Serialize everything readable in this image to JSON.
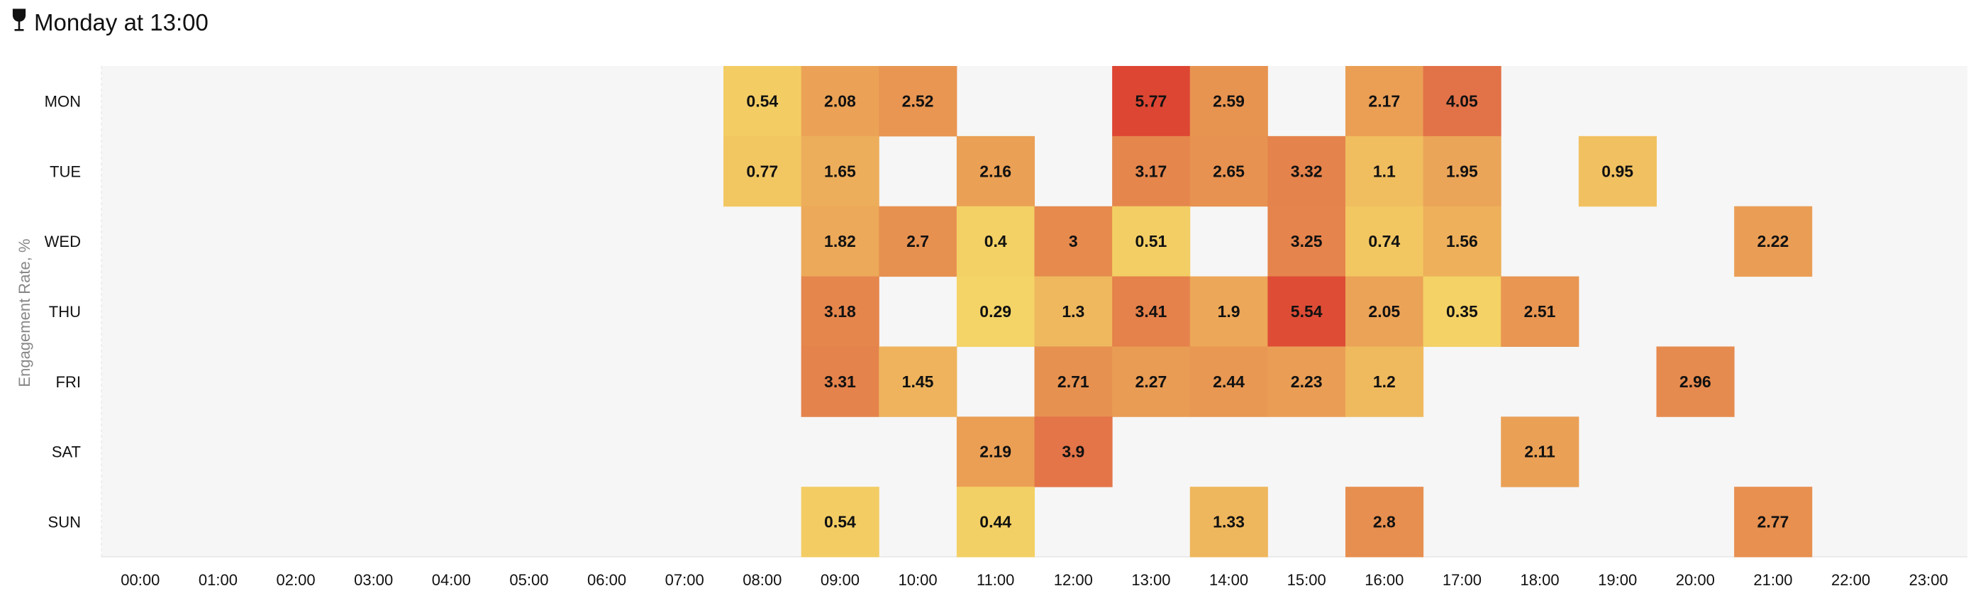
{
  "header": {
    "title": "Monday at 13:00",
    "icon": "trophy-icon"
  },
  "chart_data": {
    "type": "heatmap",
    "title": "",
    "xlabel": "",
    "ylabel": "Engagement Rate, %",
    "x": [
      "00:00",
      "01:00",
      "02:00",
      "03:00",
      "04:00",
      "05:00",
      "06:00",
      "07:00",
      "08:00",
      "09:00",
      "10:00",
      "11:00",
      "12:00",
      "13:00",
      "14:00",
      "15:00",
      "16:00",
      "17:00",
      "18:00",
      "19:00",
      "20:00",
      "21:00",
      "22:00",
      "23:00"
    ],
    "y": [
      "MON",
      "TUE",
      "WED",
      "THU",
      "FRI",
      "SAT",
      "SUN"
    ],
    "values": [
      [
        null,
        null,
        null,
        null,
        null,
        null,
        null,
        null,
        0.54,
        2.08,
        2.52,
        null,
        null,
        5.77,
        2.59,
        null,
        2.17,
        4.05,
        null,
        null,
        null,
        null,
        null,
        null
      ],
      [
        null,
        null,
        null,
        null,
        null,
        null,
        null,
        null,
        0.77,
        1.65,
        null,
        2.16,
        null,
        3.17,
        2.65,
        3.32,
        1.1,
        1.95,
        null,
        0.95,
        null,
        null,
        null,
        null
      ],
      [
        null,
        null,
        null,
        null,
        null,
        null,
        null,
        null,
        null,
        1.82,
        2.7,
        0.4,
        3,
        0.51,
        null,
        3.25,
        0.74,
        1.56,
        null,
        null,
        null,
        2.22,
        null,
        null
      ],
      [
        null,
        null,
        null,
        null,
        null,
        null,
        null,
        null,
        null,
        3.18,
        null,
        0.29,
        1.3,
        3.41,
        1.9,
        5.54,
        2.05,
        0.35,
        2.51,
        null,
        null,
        null,
        null,
        null
      ],
      [
        null,
        null,
        null,
        null,
        null,
        null,
        null,
        null,
        null,
        3.31,
        1.45,
        null,
        2.71,
        2.27,
        2.44,
        2.23,
        1.2,
        null,
        null,
        null,
        2.96,
        null,
        null,
        null
      ],
      [
        null,
        null,
        null,
        null,
        null,
        null,
        null,
        null,
        null,
        null,
        null,
        2.19,
        3.9,
        null,
        null,
        null,
        null,
        null,
        2.11,
        null,
        null,
        null,
        null,
        null
      ],
      [
        null,
        null,
        null,
        null,
        null,
        null,
        null,
        null,
        null,
        0.54,
        null,
        0.44,
        null,
        null,
        1.33,
        null,
        2.8,
        null,
        null,
        null,
        null,
        2.77,
        null,
        null
      ]
    ],
    "color_scale": [
      {
        "value": 0.29,
        "color": "#f4d466"
      },
      {
        "value": 1.5,
        "color": "#eeb25c"
      },
      {
        "value": 2.5,
        "color": "#e89652"
      },
      {
        "value": 3.3,
        "color": "#e5834c"
      },
      {
        "value": 4.05,
        "color": "#e27248"
      },
      {
        "value": 5.77,
        "color": "#dd4633"
      }
    ],
    "background": "#f6f6f6",
    "legend": "none",
    "grid": false
  }
}
